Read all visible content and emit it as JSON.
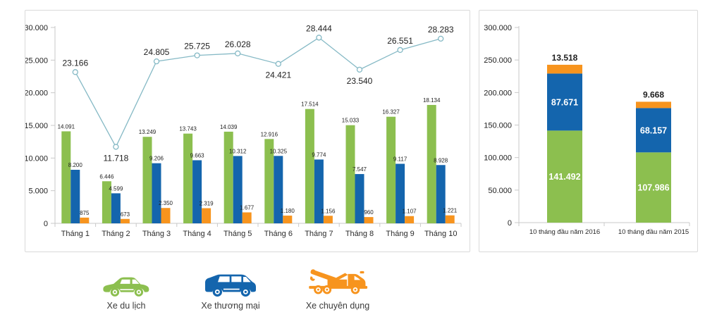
{
  "colors": {
    "passenger_green": "#8CBF4F",
    "commercial_blue": "#1465AD",
    "special_orange": "#F7941E",
    "total_line": "#85B9C5",
    "axis_gray": "#C8C8C8",
    "label_dark": "#222222",
    "panel_border": "#DADADA"
  },
  "legend": {
    "items": [
      {
        "id": "xe-du-lich",
        "label": "Xe du lịch",
        "color": "#8CBF4F",
        "icon": "car-icon"
      },
      {
        "id": "xe-thuong-mai",
        "label": "Xe thương mại",
        "color": "#1465AD",
        "icon": "van-icon"
      },
      {
        "id": "xe-chuyen-dung",
        "label": "Xe chuyên dụng",
        "color": "#F7941E",
        "icon": "tow-truck-icon"
      }
    ]
  },
  "chart_data": [
    {
      "type": "bar",
      "subtype": "grouped-bars-with-total-line",
      "title": "",
      "categories": [
        "Tháng 1",
        "Tháng 2",
        "Tháng 3",
        "Tháng 4",
        "Tháng 5",
        "Tháng 6",
        "Tháng 7",
        "Tháng 8",
        "Tháng 9",
        "Tháng 10"
      ],
      "series": [
        {
          "name": "Xe du lịch",
          "type": "bar",
          "color": "#8CBF4F",
          "values": [
            14091,
            6446,
            13249,
            13743,
            14039,
            12916,
            17514,
            15033,
            16327,
            18134
          ],
          "labels": [
            "14.091",
            "6.446",
            "13.249",
            "13.743",
            "14.039",
            "12.916",
            "17.514",
            "15.033",
            "16.327",
            "18.134"
          ]
        },
        {
          "name": "Xe thương mại",
          "type": "bar",
          "color": "#1465AD",
          "values": [
            8200,
            4599,
            9206,
            9663,
            10312,
            10325,
            9774,
            7547,
            9117,
            8928
          ],
          "labels": [
            "8.200",
            "4.599",
            "9.206",
            "9.663",
            "10.312",
            "10.325",
            "9.774",
            "7.547",
            "9.117",
            "8.928"
          ]
        },
        {
          "name": "Xe chuyên dụng",
          "type": "bar",
          "color": "#F7941E",
          "values": [
            875,
            673,
            2350,
            2319,
            1677,
            1180,
            1156,
            960,
            1107,
            1221
          ],
          "labels": [
            "875",
            "673",
            "2.350",
            "2.319",
            "1.677",
            "1.180",
            "1.156",
            "960",
            "1.107",
            "1.221"
          ]
        },
        {
          "name": "",
          "type": "line",
          "color": "#85B9C5",
          "values": [
            23166,
            11718,
            24805,
            25725,
            26028,
            24421,
            28444,
            23540,
            26551,
            28283
          ],
          "labels": [
            "23.166",
            "11.718",
            "24.805",
            "25.725",
            "26.028",
            "24.421",
            "28.444",
            "23.540",
            "26.551",
            "28.283"
          ],
          "label_side": [
            "above",
            "below",
            "above",
            "above",
            "above",
            "below",
            "above",
            "below",
            "above",
            "above"
          ]
        }
      ],
      "ylim": [
        0,
        30000
      ],
      "y_ticks": [
        "0",
        "5.000",
        "10.000",
        "15.000",
        "20.000",
        "25.000",
        "30.000"
      ],
      "grid": false,
      "legend_position": "bottom"
    },
    {
      "type": "bar",
      "subtype": "stacked",
      "title": "",
      "categories": [
        "10 tháng đầu năm 2016",
        "10 tháng đầu năm 2015"
      ],
      "series": [
        {
          "name": "Xe du lịch",
          "color": "#8CBF4F",
          "values": [
            141492,
            107986
          ],
          "labels": [
            "141.492",
            "107.986"
          ],
          "label_placement": "inside"
        },
        {
          "name": "Xe thương mại",
          "color": "#1465AD",
          "values": [
            87671,
            68157
          ],
          "labels": [
            "87.671",
            "68.157"
          ],
          "label_placement": "inside"
        },
        {
          "name": "Xe chuyên dụng",
          "color": "#F7941E",
          "values": [
            13518,
            9668
          ],
          "labels": [
            "13.518",
            "9.668"
          ],
          "label_placement": "above-bar"
        }
      ],
      "ylim": [
        0,
        300000
      ],
      "y_ticks": [
        "0",
        "50.000",
        "100.000",
        "150.000",
        "200.000",
        "250.000",
        "300.000"
      ],
      "grid": false
    }
  ]
}
